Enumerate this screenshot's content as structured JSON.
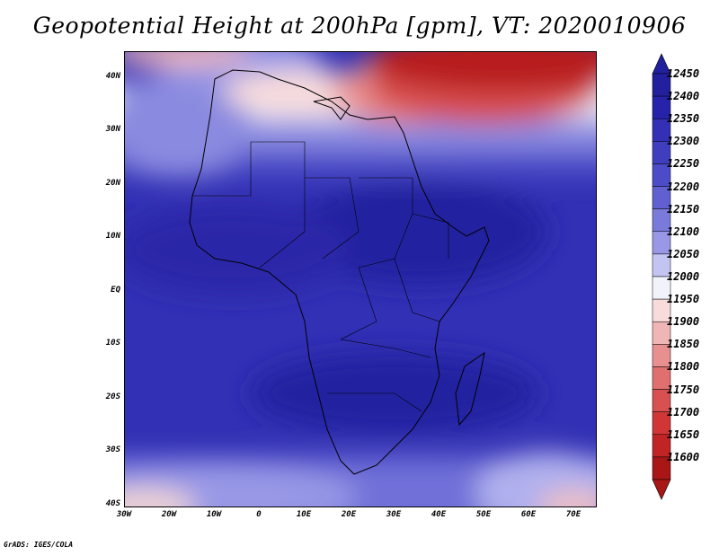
{
  "title": "Geopotential Height at 200hPa [gpm], VT: 2020010906",
  "credit": "GrADS: IGES/COLA",
  "map": {
    "lon_range": [
      -30,
      75
    ],
    "lat_range": [
      -40,
      45
    ],
    "lat_labels": [
      "40N",
      "30N",
      "20N",
      "10N",
      "EQ",
      "10S",
      "20S",
      "30S",
      "40S"
    ],
    "lon_labels": [
      "30W",
      "20W",
      "10W",
      "0",
      "10E",
      "20E",
      "30E",
      "40E",
      "50E",
      "60E",
      "70E"
    ]
  },
  "colorbar": {
    "levels": [
      "12450",
      "12400",
      "12350",
      "12300",
      "12250",
      "12200",
      "12150",
      "12100",
      "12050",
      "12000",
      "11950",
      "11900",
      "11850",
      "11800",
      "11750",
      "11700",
      "11650",
      "11600"
    ],
    "colors": [
      "#22209c",
      "#2622aa",
      "#3330b6",
      "#3f3ebf",
      "#4c4cc8",
      "#6060d0",
      "#7a7adb",
      "#9898e6",
      "#c4c4f2",
      "#f2f2fb",
      "#f8dcdc",
      "#f0b6b6",
      "#e89090",
      "#e07070",
      "#d85050",
      "#d03636",
      "#c02424",
      "#a81616"
    ]
  },
  "chart_data": {
    "type": "heatmap",
    "title": "Geopotential Height at 200hPa [gpm], VT: 2020010906",
    "xlabel": "",
    "ylabel": "",
    "xlim": [
      -30,
      75
    ],
    "ylim": [
      -40,
      45
    ],
    "x_ticks": [
      "30W",
      "20W",
      "10W",
      "0",
      "10E",
      "20E",
      "30E",
      "40E",
      "50E",
      "60E",
      "70E"
    ],
    "y_ticks": [
      "40N",
      "30N",
      "20N",
      "10N",
      "EQ",
      "10S",
      "20S",
      "30S",
      "40S"
    ],
    "levels": [
      11600,
      11650,
      11700,
      11750,
      11800,
      11850,
      11900,
      11950,
      12000,
      12050,
      12100,
      12150,
      12200,
      12250,
      12300,
      12350,
      12400,
      12450
    ],
    "features": [
      {
        "region": "Mediterranean / Middle East, 35N-45N, 20E-75E",
        "value_approx": 11600
      },
      {
        "region": "Northwest Africa / W Mediterranean, 35N-45N, 10W-10E",
        "value_approx": 12000
      },
      {
        "region": "Tropical Africa and Indian Ocean, 20N-25S",
        "value_approx": 12400
      },
      {
        "region": "South Atlantic and South Indian Ocean, 35S-40S",
        "value_approx": 12100
      }
    ]
  }
}
